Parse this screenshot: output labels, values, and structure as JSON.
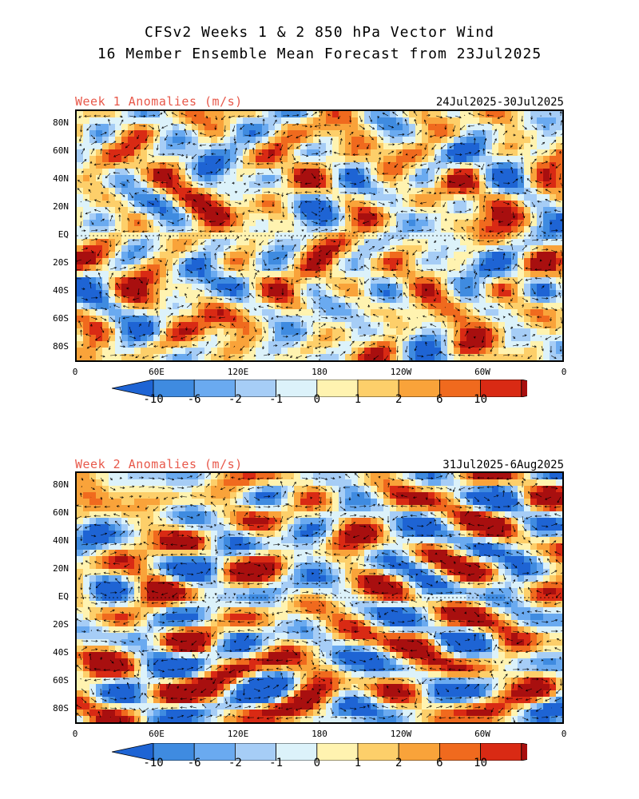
{
  "title": {
    "line1": "CFSv2 Weeks 1 & 2 850 hPa Vector Wind",
    "line2": "16 Member Ensemble Mean Forecast from 23Jul2025"
  },
  "panels": [
    {
      "label": "Week 1 Anomalies (m/s)",
      "dates": "24Jul2025-30Jul2025"
    },
    {
      "label": "Week 2 Anomalies (m/s)",
      "dates": "31Jul2025-6Aug2025"
    }
  ],
  "lat_ticks": [
    "80N",
    "60N",
    "40N",
    "20N",
    "EQ",
    "20S",
    "40S",
    "60S",
    "80S"
  ],
  "lon_ticks": [
    "0",
    "60E",
    "120E",
    "180",
    "120W",
    "60W",
    "0"
  ],
  "colorbar": {
    "labels": [
      "-10",
      "-6",
      "-2",
      "-1",
      "0",
      "1",
      "2",
      "6",
      "10"
    ],
    "colors": [
      "#1e64d4",
      "#3f8be0",
      "#6aaaf0",
      "#a6cdf6",
      "#dcf2fa",
      "#fff3b0",
      "#fdcf6a",
      "#f9a33a",
      "#f06a1e",
      "#d92a14",
      "#a80f0f"
    ]
  }
}
